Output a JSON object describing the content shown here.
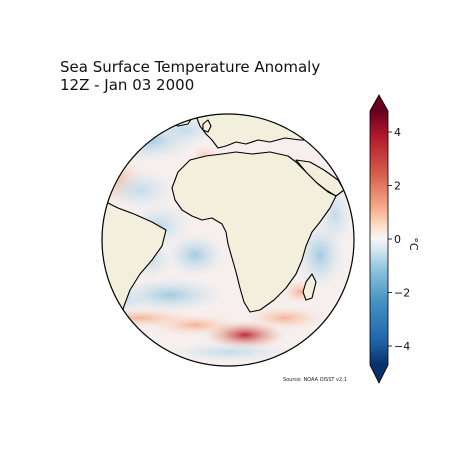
{
  "title": {
    "line1": "Sea Surface Temperature Anomaly",
    "line2": "12Z - Jan 03 2000"
  },
  "source": "Source: NOAA OISST v2.1",
  "colorbar": {
    "unit": "°C",
    "ticks": [
      "4",
      "2",
      "0",
      "−2",
      "−4"
    ],
    "range": [
      -5,
      5
    ],
    "colors": [
      "#08306b",
      "#2166ac",
      "#4393c3",
      "#92c5de",
      "#d1e5f0",
      "#f7f7f7",
      "#fddbc7",
      "#f4a582",
      "#d6604d",
      "#b2182b",
      "#67001f"
    ]
  },
  "map": {
    "projection": "orthographic globe centered on the Atlantic Ocean / Africa",
    "land_color": "#f2efdc",
    "ocean_base_color": "#f7f2f0",
    "coastline_color": "#000000"
  }
}
